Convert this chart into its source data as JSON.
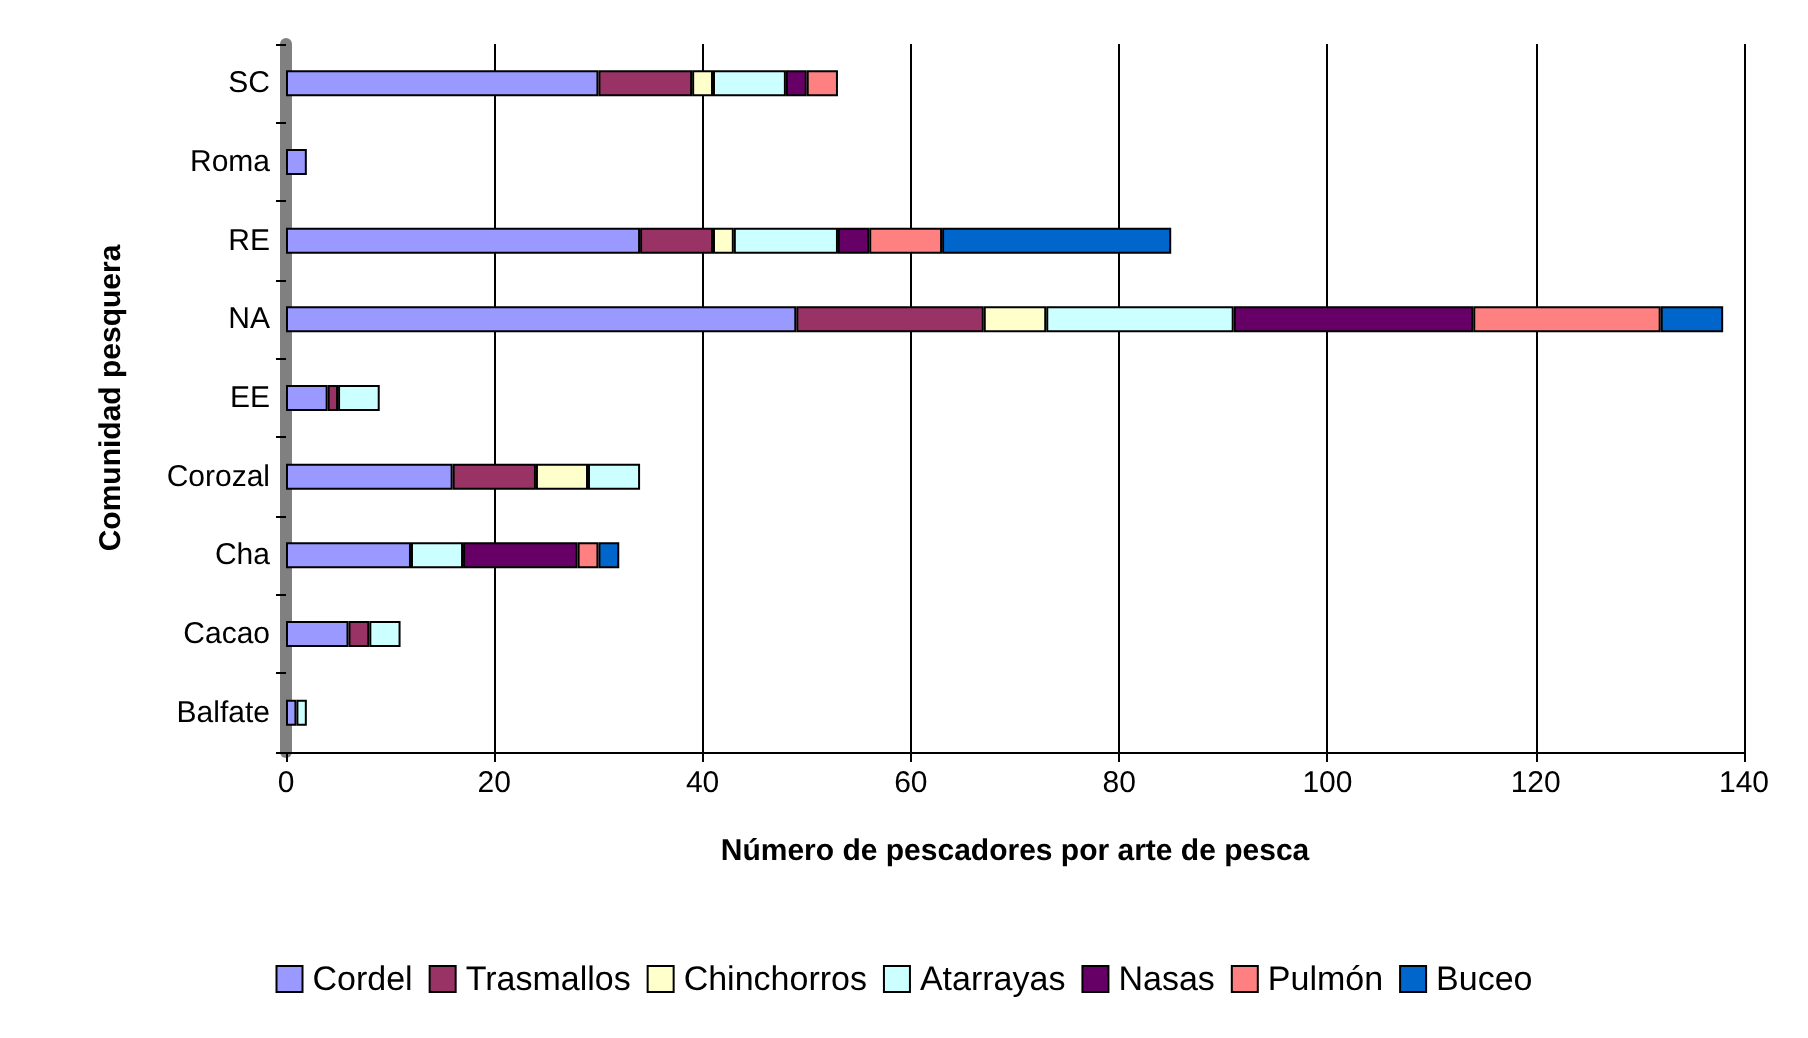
{
  "chart_data": {
    "type": "bar",
    "orientation": "horizontal",
    "stacked": true,
    "categories": [
      "SC",
      "Roma",
      "RE",
      "NA",
      "EE",
      "Corozal",
      "Cha",
      "Cacao",
      "Balfate"
    ],
    "series": [
      {
        "name": "Cordel",
        "color": "#9999ff",
        "values": [
          30,
          2,
          34,
          49,
          4,
          16,
          12,
          6,
          1
        ]
      },
      {
        "name": "Trasmallos",
        "color": "#993366",
        "values": [
          9,
          0,
          7,
          18,
          1,
          8,
          0,
          2,
          0
        ]
      },
      {
        "name": "Chinchorros",
        "color": "#ffffcc",
        "values": [
          2,
          0,
          2,
          6,
          0,
          5,
          0,
          0,
          0
        ]
      },
      {
        "name": "Atarrayas",
        "color": "#ccffff",
        "values": [
          7,
          0,
          10,
          18,
          4,
          5,
          5,
          3,
          1
        ]
      },
      {
        "name": "Nasas",
        "color": "#660066",
        "values": [
          2,
          0,
          3,
          23,
          0,
          0,
          11,
          0,
          0
        ]
      },
      {
        "name": "Pulmón",
        "color": "#ff8080",
        "values": [
          3,
          0,
          7,
          18,
          0,
          0,
          2,
          0,
          0
        ]
      },
      {
        "name": "Buceo",
        "color": "#0066cc",
        "values": [
          0,
          0,
          22,
          6,
          0,
          0,
          2,
          0,
          0
        ]
      }
    ],
    "xlim": [
      0,
      140
    ],
    "xticks": [
      0,
      20,
      40,
      60,
      80,
      100,
      120,
      140
    ],
    "xlabel": "Número de pescadores por arte de pesca",
    "ylabel": "Comunidad pesquera",
    "grid": "x",
    "legend": "bottom"
  }
}
